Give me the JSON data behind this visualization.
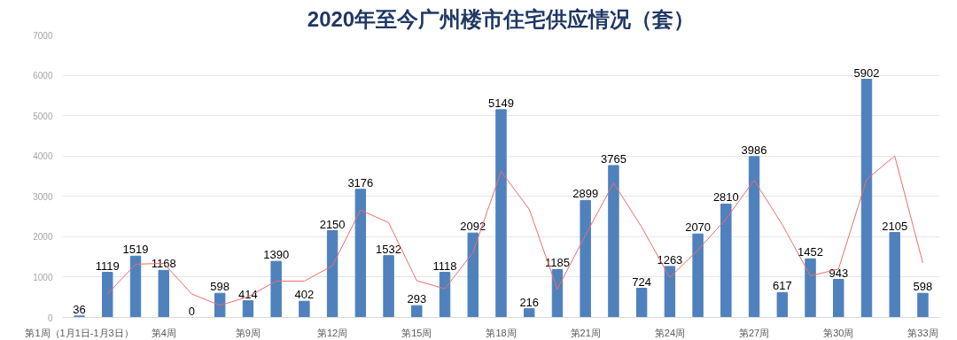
{
  "chart_data": {
    "type": "bar",
    "title": "2020年至今广州楼市住宅供应情况（套）",
    "categories": [
      "第1周（1月1日-1月3日）",
      null,
      null,
      "第4周",
      null,
      null,
      "第9周",
      null,
      null,
      "第12周",
      null,
      null,
      "第15周",
      null,
      null,
      "第18周",
      null,
      null,
      "第21周",
      null,
      null,
      "第24周",
      null,
      null,
      "第27周",
      null,
      null,
      "第30周",
      null,
      null,
      "第33周"
    ],
    "series": [
      {
        "color": "#4f81bd",
        "values": [
          36,
          1119,
          1519,
          1168,
          0,
          598,
          414,
          1390,
          402,
          2150,
          3176,
          1532,
          293,
          1118,
          2092,
          5149,
          216,
          1185,
          2899,
          3765,
          724,
          1263,
          2070,
          2810,
          3986,
          617,
          1452,
          943,
          5902,
          2105,
          598
        ],
        "value_labels": [
          "36",
          "1119",
          "1519",
          "1168",
          "0",
          "598",
          "414",
          "1390",
          "402",
          "2150",
          "3176",
          "1532",
          "293",
          "1118",
          "2092",
          "5149",
          "216",
          "1185",
          "2899",
          "3765",
          "724",
          "1263",
          "2070",
          "2810",
          "3986",
          "617",
          "1452",
          "943",
          "5902",
          "2105",
          "598"
        ]
      },
      {
        "type": "line",
        "color": "#f26b6b",
        "values": [
          null,
          580,
          1320,
          1340,
          580,
          300,
          510,
          900,
          900,
          1280,
          2660,
          2350,
          910,
          710,
          1610,
          3620,
          2680,
          700,
          2040,
          3330,
          2240,
          990,
          1670,
          2440,
          3400,
          2300,
          1030,
          1200,
          3420,
          4000,
          1350
        ]
      }
    ],
    "ylim": [
      0,
      7000
    ],
    "yticks": [
      0,
      1000,
      2000,
      3000,
      4000,
      5000,
      6000,
      7000
    ],
    "grid": "y",
    "marker": "none",
    "line_style": "solid"
  }
}
